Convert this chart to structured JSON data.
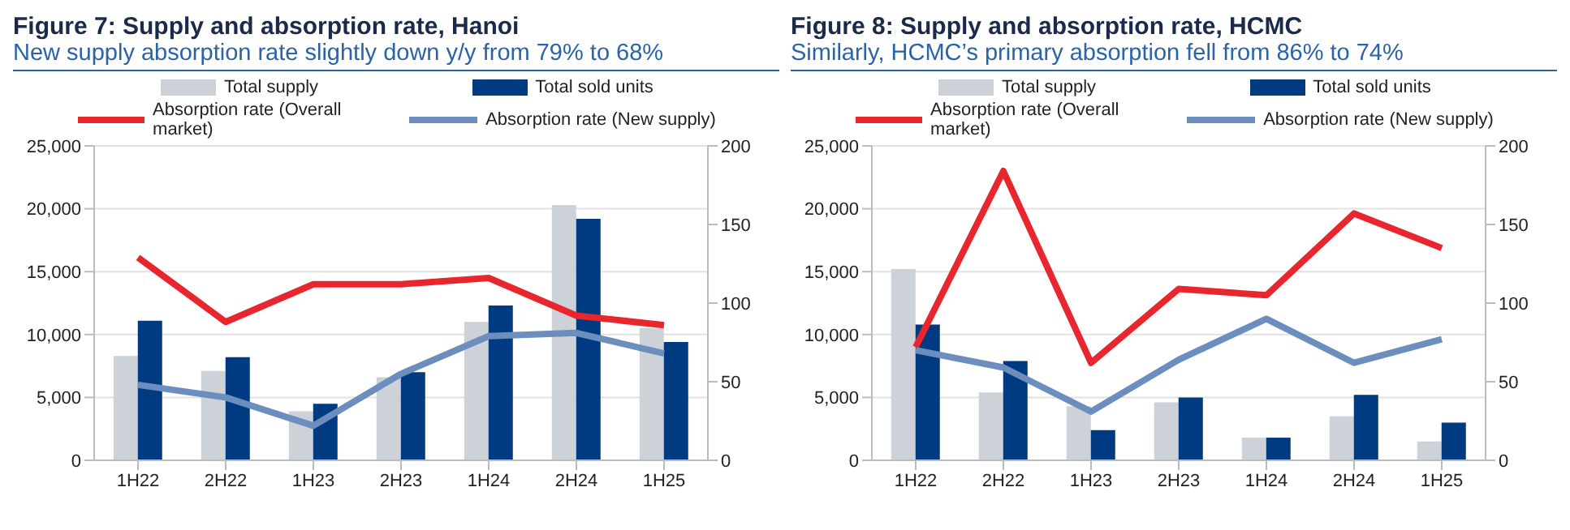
{
  "chart_data": [
    {
      "type": "bar",
      "title": "Figure 7: Supply and absorption rate, Hanoi",
      "subtitle": "New supply absorption rate slightly down y/y from 79% to 68%",
      "categories": [
        "1H22",
        "2H22",
        "1H23",
        "2H23",
        "1H24",
        "2H24",
        "1H25"
      ],
      "series": [
        {
          "name": "Total supply",
          "color": "#cdd1d8",
          "values": [
            8300,
            7100,
            3900,
            6600,
            11000,
            20300,
            10500
          ]
        },
        {
          "name": "Total sold units",
          "color": "#003a80",
          "values": [
            11100,
            8200,
            4500,
            7000,
            12300,
            19200,
            9400
          ]
        },
        {
          "name": "Absorption rate (Overall market)",
          "type": "line",
          "axis": "y2",
          "color": "#e8262e",
          "values": [
            129,
            88,
            112,
            112,
            116,
            92,
            86
          ]
        },
        {
          "name": "Absorption rate (New supply)",
          "type": "line",
          "axis": "y2",
          "color": "#6c8ebf",
          "values": [
            48,
            40,
            22,
            55,
            79,
            81,
            68
          ]
        }
      ],
      "ylim": [
        0,
        25000
      ],
      "yticks": [
        {
          "value": 0,
          "label": "0"
        },
        {
          "value": 5000,
          "label": "5,000"
        },
        {
          "value": 10000,
          "label": "10,000"
        },
        {
          "value": 15000,
          "label": "15,000"
        },
        {
          "value": 20000,
          "label": "20,000"
        },
        {
          "value": 25000,
          "label": "25,000"
        }
      ],
      "y2lim": [
        0,
        200
      ],
      "y2ticks": [
        0,
        50,
        100,
        150,
        200
      ],
      "grid": "y",
      "legend": "top",
      "marker": "none"
    },
    {
      "type": "bar",
      "title": "Figure 8: Supply and absorption rate, HCMC",
      "subtitle": "Similarly, HCMC’s primary absorption fell from 86% to 74%",
      "categories": [
        "1H22",
        "2H22",
        "1H23",
        "2H23",
        "1H24",
        "2H24",
        "1H25"
      ],
      "series": [
        {
          "name": "Total supply",
          "color": "#cdd1d8",
          "values": [
            15200,
            5400,
            4300,
            4600,
            1800,
            3500,
            1500
          ]
        },
        {
          "name": "Total sold units",
          "color": "#003a80",
          "values": [
            10800,
            7900,
            2400,
            5000,
            1800,
            5200,
            3000
          ]
        },
        {
          "name": "Absorption rate (Overall market)",
          "type": "line",
          "axis": "y2",
          "color": "#e8262e",
          "values": [
            72,
            184,
            62,
            109,
            105,
            157,
            135
          ]
        },
        {
          "name": "Absorption rate (New supply)",
          "type": "line",
          "axis": "y2",
          "color": "#6c8ebf",
          "values": [
            70,
            59,
            31,
            64,
            90,
            62,
            77
          ]
        }
      ],
      "ylim": [
        0,
        25000
      ],
      "yticks": [
        {
          "value": 0,
          "label": "0"
        },
        {
          "value": 5000,
          "label": "5,000"
        },
        {
          "value": 10000,
          "label": "10,000"
        },
        {
          "value": 15000,
          "label": "15,000"
        },
        {
          "value": 20000,
          "label": "20,000"
        },
        {
          "value": 25000,
          "label": "25,000"
        }
      ],
      "y2lim": [
        0,
        200
      ],
      "y2ticks": [
        0,
        50,
        100,
        150,
        200
      ],
      "grid": "y",
      "legend": "top",
      "marker": "none"
    }
  ]
}
